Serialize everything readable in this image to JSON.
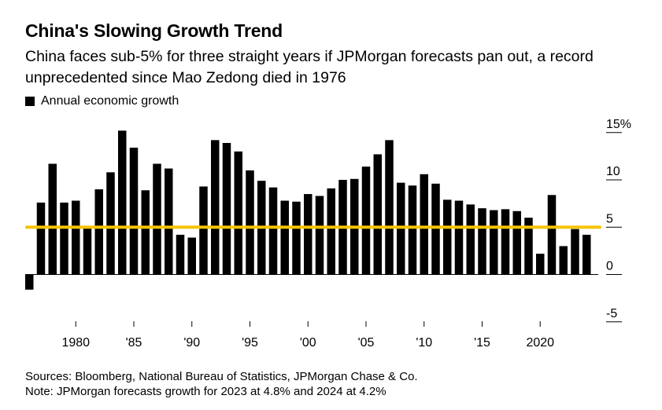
{
  "header": {
    "title": "China's Slowing Growth Trend",
    "subtitle": "China faces sub-5% for three straight years if JPMorgan forecasts pan out, a record unprecedented since Mao Zedong died in 1976"
  },
  "legend": {
    "label": "Annual economic growth"
  },
  "footer": {
    "sources": "Sources: Bloomberg, National Bureau of Statistics, JPMorgan Chase & Co.",
    "note": "Note: JPMorgan forecasts growth for 2023 at 4.8% and 2024 at 4.2%"
  },
  "chart_data": {
    "type": "bar",
    "title": "China's Slowing Growth Trend",
    "subtitle": "China faces sub-5% for three straight years if JPMorgan forecasts pan out, a record unprecedented since Mao Zedong died in 1976",
    "xlabel": "",
    "ylabel": "",
    "categories": [
      1976,
      1977,
      1978,
      1979,
      1980,
      1981,
      1982,
      1983,
      1984,
      1985,
      1986,
      1987,
      1988,
      1989,
      1990,
      1991,
      1992,
      1993,
      1994,
      1995,
      1996,
      1997,
      1998,
      1999,
      2000,
      2001,
      2002,
      2003,
      2004,
      2005,
      2006,
      2007,
      2008,
      2009,
      2010,
      2011,
      2012,
      2013,
      2014,
      2015,
      2016,
      2017,
      2018,
      2019,
      2020,
      2021,
      2022,
      2023,
      2024
    ],
    "values": [
      -1.6,
      7.6,
      11.7,
      7.6,
      7.8,
      5.1,
      9.0,
      10.8,
      15.2,
      13.4,
      8.9,
      11.7,
      11.2,
      4.2,
      3.9,
      9.3,
      14.2,
      13.9,
      13.0,
      11.0,
      9.9,
      9.2,
      7.8,
      7.7,
      8.5,
      8.3,
      9.1,
      10.0,
      10.1,
      11.4,
      12.7,
      14.2,
      9.7,
      9.4,
      10.6,
      9.6,
      7.9,
      7.8,
      7.4,
      7.0,
      6.8,
      6.9,
      6.7,
      6.0,
      2.2,
      8.4,
      3.0,
      4.8,
      4.2
    ],
    "reference_line": {
      "value": 5,
      "color": "#f5c400"
    },
    "ylim": [
      -5,
      15
    ],
    "yticks": [
      -5,
      0,
      5,
      10,
      15
    ],
    "ytick_labels": [
      "-5",
      "0",
      "5",
      "10",
      "15%"
    ],
    "xticks": [
      1980,
      1985,
      1990,
      1995,
      2000,
      2005,
      2010,
      2015,
      2020
    ],
    "xtick_labels": [
      "1980",
      "'85",
      "'90",
      "'95",
      "'00",
      "'05",
      "'10",
      "'15",
      "2020"
    ],
    "bar_color": "#000000",
    "grid": false,
    "legend_position": "top-left"
  }
}
